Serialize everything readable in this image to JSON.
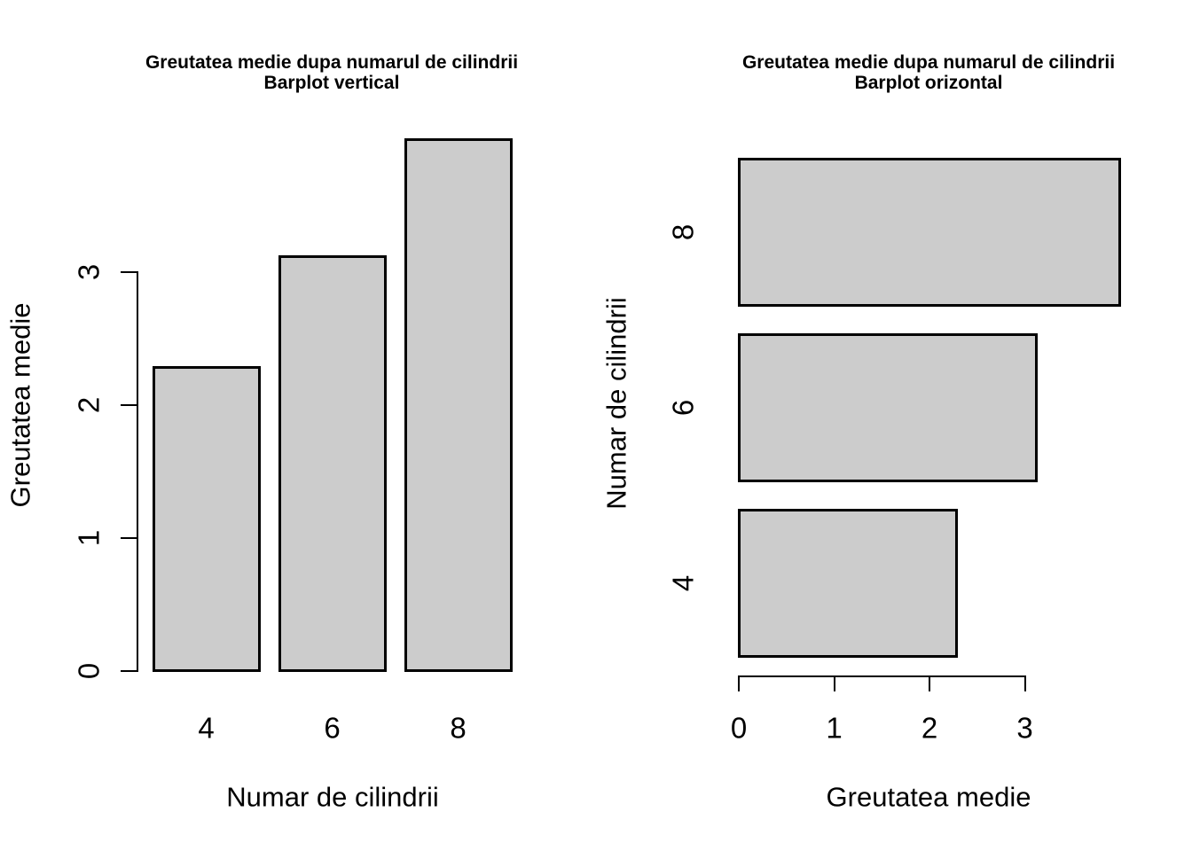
{
  "chart_data": [
    {
      "type": "bar",
      "orientation": "vertical",
      "title": "Greutatea medie dupa numarul de cilindrii",
      "subtitle": "Barplot vertical",
      "xlabel": "Numar de cilindrii",
      "ylabel": "Greutatea medie",
      "categories": [
        "4",
        "6",
        "8"
      ],
      "values": [
        2.286,
        3.117,
        3.999
      ],
      "value_ticks": [
        0,
        1,
        2,
        3
      ],
      "value_axis_range": [
        0,
        4.16
      ],
      "grid": false,
      "legend": false,
      "bar_color": "#cccccc",
      "axis_color": "#000000"
    },
    {
      "type": "bar",
      "orientation": "horizontal",
      "title": "Greutatea medie dupa numarul de cilindrii",
      "subtitle": "Barplot orizontal",
      "xlabel": "Greutatea medie",
      "ylabel": "Numar de cilindrii",
      "categories": [
        "4",
        "6",
        "8"
      ],
      "values": [
        2.286,
        3.117,
        3.999
      ],
      "value_ticks": [
        0,
        1,
        2,
        3
      ],
      "value_axis_range": [
        0,
        4.16
      ],
      "grid": false,
      "legend": false,
      "bar_color": "#cccccc",
      "axis_color": "#000000"
    }
  ]
}
